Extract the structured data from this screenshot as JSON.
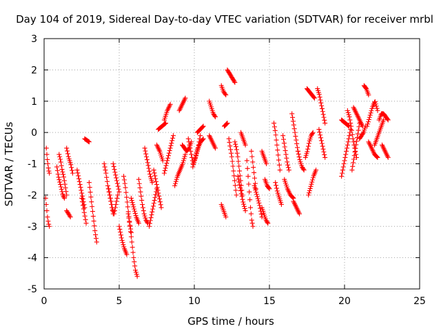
{
  "chart_data": {
    "type": "scatter",
    "title": "Day 104 of 2019, Sidereal Day-to-day VTEC variation (SDTVAR) for receiver mrbl",
    "xlabel": "GPS time / hours",
    "ylabel": "SDTVAR / TECUs",
    "xlim": [
      0,
      25
    ],
    "ylim": [
      -5,
      3
    ],
    "xticks": [
      "0",
      "5",
      "10",
      "15",
      "20",
      "25"
    ],
    "yticks": [
      "-5",
      "-4",
      "-3",
      "-2",
      "-1",
      "0",
      "1",
      "2",
      "3"
    ],
    "grid": true,
    "marker": "plus",
    "series_color": "#ff0000",
    "tracks": [
      {
        "x0": 0.1,
        "x1": 0.35,
        "y": [
          -2.1,
          -2.4,
          -2.7,
          -2.9,
          -3.0
        ]
      },
      {
        "x0": 0.15,
        "x1": 0.35,
        "y": [
          -0.5,
          -0.8,
          -1.0,
          -1.2,
          -1.3
        ]
      },
      {
        "x0": 0.85,
        "x1": 1.35,
        "y": [
          -1.1,
          -1.4,
          -1.6,
          -1.8,
          -2.0,
          -2.1
        ]
      },
      {
        "x0": 1.0,
        "x1": 1.5,
        "y": [
          -0.7,
          -0.9,
          -1.2,
          -1.4,
          -1.7,
          -2.0
        ]
      },
      {
        "x0": 1.5,
        "x1": 1.9,
        "y": [
          -0.5,
          -0.8,
          -1.0,
          -1.3
        ]
      },
      {
        "x0": 1.5,
        "x1": 1.75,
        "y": [
          -2.5,
          -2.6,
          -2.7
        ]
      },
      {
        "x0": 2.2,
        "x1": 2.7,
        "y": [
          -1.2,
          -1.5,
          -1.8,
          -2.1,
          -2.4
        ]
      },
      {
        "x0": 2.5,
        "x1": 2.8,
        "y": [
          -2.1,
          -2.5,
          -2.9
        ]
      },
      {
        "x0": 2.7,
        "x1": 3.0,
        "y": [
          -0.2,
          -0.3
        ]
      },
      {
        "x0": 3.0,
        "x1": 3.5,
        "y": [
          -1.6,
          -2.0,
          -2.4,
          -2.8,
          -3.2,
          -3.5
        ]
      },
      {
        "x0": 4.0,
        "x1": 4.6,
        "y": [
          -1.0,
          -1.3,
          -1.7,
          -2.0,
          -2.3,
          -2.6
        ]
      },
      {
        "x0": 4.3,
        "x1": 4.9,
        "y": [
          -1.8,
          -2.1,
          -2.4,
          -2.6,
          -2.3,
          -2.0
        ]
      },
      {
        "x0": 4.6,
        "x1": 5.0,
        "y": [
          -1.0,
          -1.3,
          -1.6,
          -1.9
        ]
      },
      {
        "x0": 5.0,
        "x1": 5.5,
        "y": [
          -3.0,
          -3.4,
          -3.7,
          -3.9
        ]
      },
      {
        "x0": 5.3,
        "x1": 5.8,
        "y": [
          -1.4,
          -1.7,
          -2.1,
          -2.5,
          -2.9,
          -3.2
        ]
      },
      {
        "x0": 5.6,
        "x1": 6.2,
        "y": [
          -2.6,
          -3.0,
          -3.5,
          -4.0,
          -4.4,
          -4.6
        ]
      },
      {
        "x0": 5.8,
        "x1": 6.3,
        "y": [
          -2.1,
          -2.4,
          -2.7,
          -2.9
        ]
      },
      {
        "x0": 6.3,
        "x1": 6.9,
        "y": [
          -1.5,
          -1.9,
          -2.3,
          -2.6,
          -2.8,
          -2.9
        ]
      },
      {
        "x0": 6.7,
        "x1": 7.2,
        "y": [
          -0.5,
          -0.8,
          -1.1,
          -1.4,
          -1.6
        ]
      },
      {
        "x0": 7.0,
        "x1": 7.5,
        "y": [
          -3.0,
          -2.7,
          -2.4,
          -2.1,
          -1.8
        ]
      },
      {
        "x0": 7.3,
        "x1": 7.8,
        "y": [
          -1.2,
          -1.5,
          -1.8,
          -2.1,
          -2.4
        ]
      },
      {
        "x0": 7.5,
        "x1": 7.9,
        "y": [
          -0.4,
          -0.6,
          -0.9
        ]
      },
      {
        "x0": 7.6,
        "x1": 8.1,
        "y": [
          0.1,
          0.2,
          0.3
        ]
      },
      {
        "x0": 8.0,
        "x1": 8.6,
        "y": [
          -1.3,
          -1.0,
          -0.7,
          -0.4,
          -0.1
        ]
      },
      {
        "x0": 8.0,
        "x1": 8.4,
        "y": [
          0.4,
          0.7,
          0.9
        ]
      },
      {
        "x0": 8.7,
        "x1": 9.4,
        "y": [
          -1.7,
          -1.4,
          -1.2,
          -1.0,
          -0.7
        ]
      },
      {
        "x0": 9.0,
        "x1": 9.4,
        "y": [
          0.7,
          0.9,
          1.1
        ]
      },
      {
        "x0": 9.2,
        "x1": 9.8,
        "y": [
          -0.4,
          -0.5,
          -0.6,
          -0.5,
          -0.3
        ]
      },
      {
        "x0": 9.6,
        "x1": 10.4,
        "y": [
          -0.2,
          -0.6,
          -1.0,
          -0.8,
          -0.5,
          -0.1
        ]
      },
      {
        "x0": 9.9,
        "x1": 10.6,
        "y": [
          -1.1,
          -0.8,
          -0.5,
          -0.3,
          -0.2
        ]
      },
      {
        "x0": 10.2,
        "x1": 10.6,
        "y": [
          0.0,
          0.1,
          0.2
        ]
      },
      {
        "x0": 11.0,
        "x1": 11.4,
        "y": [
          1.0,
          0.8,
          0.6,
          0.5
        ]
      },
      {
        "x0": 11.0,
        "x1": 11.4,
        "y": [
          -0.1,
          -0.3,
          -0.5
        ]
      },
      {
        "x0": 11.8,
        "x1": 12.1,
        "y": [
          1.5,
          1.3,
          1.2
        ]
      },
      {
        "x0": 11.8,
        "x1": 12.1,
        "y": [
          -2.3,
          -2.5,
          -2.7
        ]
      },
      {
        "x0": 12.0,
        "x1": 12.2,
        "y": [
          0.2,
          0.3
        ]
      },
      {
        "x0": 12.2,
        "x1": 12.7,
        "y": [
          2.0,
          1.9,
          1.8,
          1.7,
          1.6
        ]
      },
      {
        "x0": 12.3,
        "x1": 12.8,
        "y": [
          -0.2,
          -0.5,
          -0.8,
          -1.2,
          -1.6,
          -2.0
        ]
      },
      {
        "x0": 12.7,
        "x1": 13.2,
        "y": [
          -0.3,
          -0.5,
          -0.8,
          -1.2,
          -1.6,
          -2.0
        ]
      },
      {
        "x0": 12.9,
        "x1": 13.4,
        "y": [
          -1.4,
          -1.8,
          -2.2,
          -2.5
        ]
      },
      {
        "x0": 13.1,
        "x1": 13.4,
        "y": [
          0.0,
          -0.2,
          -0.4
        ]
      },
      {
        "x0": 13.5,
        "x1": 13.9,
        "y": [
          -0.9,
          -1.4,
          -1.9,
          -2.4,
          -2.8,
          -3.0
        ]
      },
      {
        "x0": 13.8,
        "x1": 14.1,
        "y": [
          -0.6,
          -1.0,
          -1.4,
          -1.8
        ]
      },
      {
        "x0": 14.0,
        "x1": 14.5,
        "y": [
          -1.7,
          -2.0,
          -2.3,
          -2.7
        ]
      },
      {
        "x0": 14.5,
        "x1": 14.8,
        "y": [
          -0.6,
          -0.8,
          -1.0
        ]
      },
      {
        "x0": 14.5,
        "x1": 14.9,
        "y": [
          -2.4,
          -2.6,
          -2.8,
          -2.9
        ]
      },
      {
        "x0": 14.7,
        "x1": 15.0,
        "y": [
          -1.5,
          -1.7,
          -1.8
        ]
      },
      {
        "x0": 15.3,
        "x1": 15.7,
        "y": [
          0.3,
          0.0,
          -0.4,
          -0.8,
          -1.2
        ]
      },
      {
        "x0": 15.4,
        "x1": 15.8,
        "y": [
          -1.6,
          -1.9,
          -2.1,
          -2.3
        ]
      },
      {
        "x0": 15.9,
        "x1": 16.3,
        "y": [
          -0.1,
          -0.4,
          -0.7,
          -1.0,
          -1.2
        ]
      },
      {
        "x0": 16.0,
        "x1": 16.6,
        "y": [
          -1.5,
          -1.8,
          -2.0,
          -2.1
        ]
      },
      {
        "x0": 16.5,
        "x1": 16.9,
        "y": [
          0.6,
          0.3,
          0.0,
          -0.3,
          -0.6
        ]
      },
      {
        "x0": 16.6,
        "x1": 17.0,
        "y": [
          -2.2,
          -2.4,
          -2.6
        ]
      },
      {
        "x0": 16.9,
        "x1": 17.3,
        "y": [
          -0.6,
          -0.9,
          -1.1,
          -1.2
        ]
      },
      {
        "x0": 17.4,
        "x1": 17.9,
        "y": [
          -0.8,
          -0.6,
          -0.3,
          -0.1,
          0.0
        ]
      },
      {
        "x0": 17.5,
        "x1": 18.0,
        "y": [
          1.4,
          1.3,
          1.2,
          1.1
        ]
      },
      {
        "x0": 17.6,
        "x1": 18.1,
        "y": [
          -2.0,
          -1.7,
          -1.4,
          -1.2
        ]
      },
      {
        "x0": 18.2,
        "x1": 18.7,
        "y": [
          1.4,
          1.2,
          0.9,
          0.6,
          0.3
        ]
      },
      {
        "x0": 18.3,
        "x1": 18.7,
        "y": [
          0.1,
          -0.2,
          -0.5,
          -0.8
        ]
      },
      {
        "x0": 19.8,
        "x1": 20.4,
        "y": [
          -1.4,
          -1.1,
          -0.8,
          -0.5,
          -0.2,
          0.1
        ]
      },
      {
        "x0": 19.8,
        "x1": 20.3,
        "y": [
          0.4,
          0.3,
          0.2
        ]
      },
      {
        "x0": 20.2,
        "x1": 20.8,
        "y": [
          0.7,
          0.5,
          0.2,
          -0.2,
          -0.5,
          -0.8
        ]
      },
      {
        "x0": 20.5,
        "x1": 21.0,
        "y": [
          -1.2,
          -0.9,
          -0.6,
          -0.3,
          0.0,
          0.3
        ]
      },
      {
        "x0": 20.6,
        "x1": 21.2,
        "y": [
          0.8,
          0.6,
          0.4,
          0.2
        ]
      },
      {
        "x0": 21.0,
        "x1": 21.4,
        "y": [
          -0.2,
          -0.1,
          0.0,
          0.2
        ]
      },
      {
        "x0": 21.3,
        "x1": 21.6,
        "y": [
          1.5,
          1.4,
          1.2
        ]
      },
      {
        "x0": 21.5,
        "x1": 22.2,
        "y": [
          0.2,
          0.5,
          0.8,
          1.0,
          0.7
        ]
      },
      {
        "x0": 21.6,
        "x1": 22.2,
        "y": [
          -0.3,
          -0.5,
          -0.7,
          -0.8
        ]
      },
      {
        "x0": 22.0,
        "x1": 22.6,
        "y": [
          -0.4,
          -0.2,
          0.0,
          0.2,
          0.4
        ]
      },
      {
        "x0": 22.3,
        "x1": 22.9,
        "y": [
          0.4,
          0.6,
          0.6,
          0.5,
          0.4
        ]
      },
      {
        "x0": 22.5,
        "x1": 22.9,
        "y": [
          -0.4,
          -0.6,
          -0.8
        ]
      }
    ]
  }
}
